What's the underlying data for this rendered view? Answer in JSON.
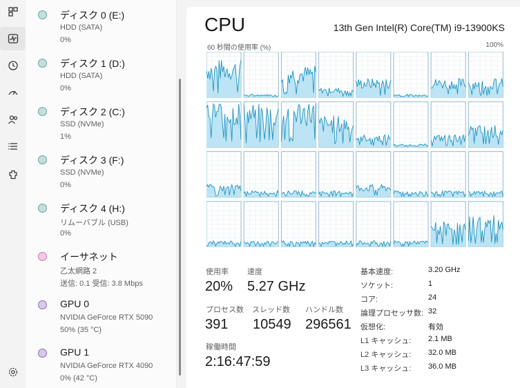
{
  "nav": {
    "icons": [
      "processes-icon",
      "performance-icon",
      "app-history-icon",
      "startup-apps-icon",
      "users-icon",
      "details-icon",
      "services-icon",
      "settings-icon"
    ]
  },
  "resources": [
    {
      "name": "ディスク 0 (E:)",
      "sub1": "HDD (SATA)",
      "sub2": "0%",
      "color": "#5fa69b"
    },
    {
      "name": "ディスク 1 (D:)",
      "sub1": "HDD (SATA)",
      "sub2": "0%",
      "color": "#5fa69b"
    },
    {
      "name": "ディスク 2 (C:)",
      "sub1": "SSD (NVMe)",
      "sub2": "1%",
      "color": "#5fa69b"
    },
    {
      "name": "ディスク 3 (F:)",
      "sub1": "SSD (NVMe)",
      "sub2": "0%",
      "color": "#5fa69b"
    },
    {
      "name": "ディスク 4 (H:)",
      "sub1": "リムーバブル (USB)",
      "sub2": "0%",
      "color": "#5fa69b"
    },
    {
      "name": "イーサネット",
      "sub1": "乙太網路 2",
      "sub2": "送信: 0.1  受信: 3.8 Mbps",
      "color": "#d66fb0"
    },
    {
      "name": "GPU 0",
      "sub1": "NVIDIA GeForce RTX 5090",
      "sub2": "50%  (35 °C)",
      "color": "#8b6cc1"
    },
    {
      "name": "GPU 1",
      "sub1": "NVIDIA GeForce RTX 4090",
      "sub2": "0%  (42 °C)",
      "color": "#8b6cc1"
    }
  ],
  "cpu": {
    "title": "CPU",
    "model": "13th Gen Intel(R) Core(TM) i9-13900KS",
    "graph_label": "60 秒間の使用率 (%)",
    "graph_max": "100%",
    "accent": "#1b93c2",
    "fill": "#bde4f4",
    "core_levels": [
      0.6,
      0.05,
      0.5,
      0.15,
      0.3,
      0.05,
      0.3,
      0.3,
      0.75,
      0.7,
      0.75,
      0.5,
      0.2,
      0.05,
      0.2,
      0.35,
      0.2,
      0.1,
      0.1,
      0.1,
      0.2,
      0.1,
      0.1,
      0.1,
      0.1,
      0.1,
      0.1,
      0.1,
      0.1,
      0.1,
      0.4,
      0.5
    ],
    "utilization_label": "使用率",
    "utilization": "20%",
    "speed_label": "速度",
    "speed": "5.27 GHz",
    "processes_label": "プロセス数",
    "processes": "391",
    "threads_label": "スレッド数",
    "threads": "10549",
    "handles_label": "ハンドル数",
    "handles": "296561",
    "uptime_label": "稼働時間",
    "uptime": "2:16:47:59",
    "specs": [
      {
        "label": "基本速度:",
        "value": "3.20 GHz"
      },
      {
        "label": "ソケット:",
        "value": "1"
      },
      {
        "label": "コア:",
        "value": "24"
      },
      {
        "label": "論理プロセッサ数:",
        "value": "32"
      },
      {
        "label": "仮想化:",
        "value": "有効"
      },
      {
        "label": "L1 キャッシュ:",
        "value": "2.1 MB"
      },
      {
        "label": "L2 キャッシュ:",
        "value": "32.0 MB"
      },
      {
        "label": "L3 キャッシュ:",
        "value": "36.0 MB"
      }
    ]
  }
}
